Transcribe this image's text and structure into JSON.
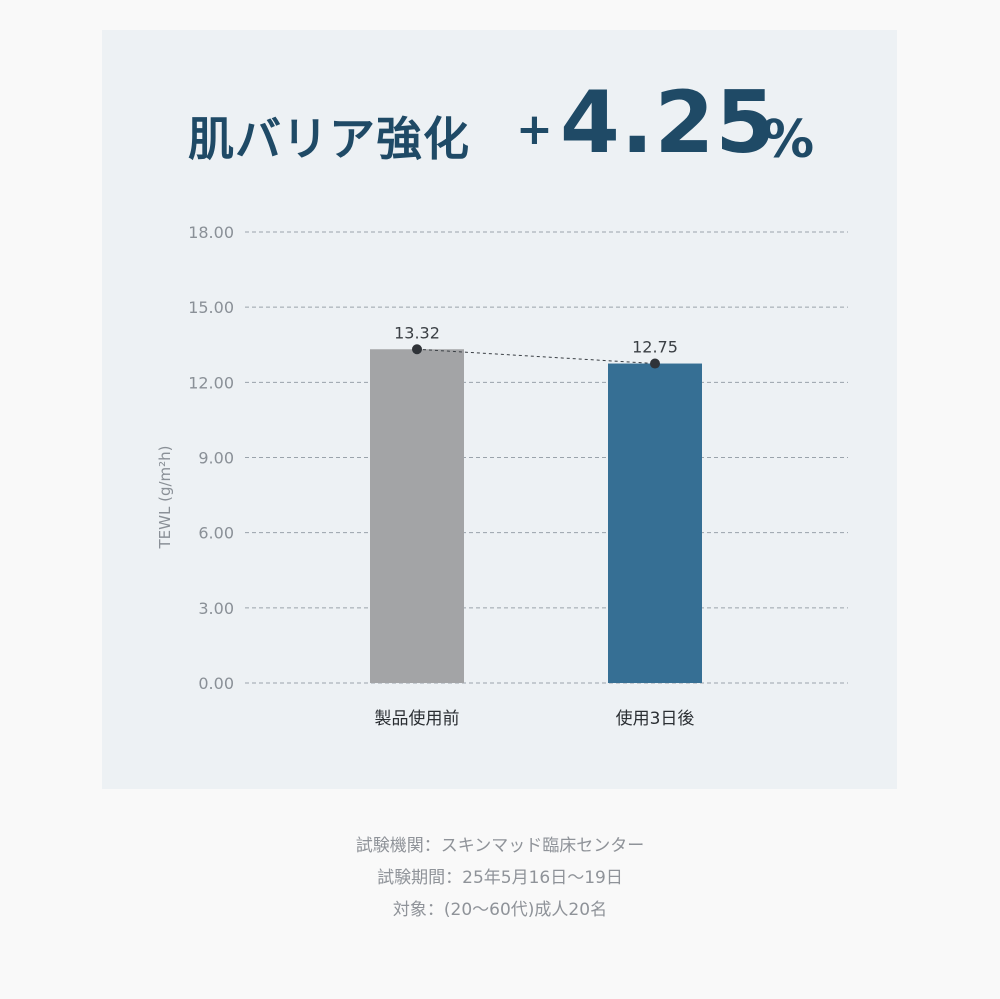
{
  "headline": {
    "text": "肌バリア強化",
    "plus": "+",
    "value": "4.25",
    "unit": "%"
  },
  "colors": {
    "before_bar": "#a3a4a6",
    "after_bar": "#366f94",
    "headline": "#1f4a66",
    "panel_bg": "#edf1f4"
  },
  "chart_data": {
    "type": "bar",
    "categories": [
      "製品使用前",
      "使用3日後"
    ],
    "values": [
      13.32,
      12.75
    ],
    "value_labels": [
      "13.32",
      "12.75"
    ],
    "ylabel": "TEWL (g/m²h)",
    "ylim": [
      0,
      18
    ],
    "yticks": [
      "0.00",
      "3.00",
      "6.00",
      "9.00",
      "12.00",
      "15.00",
      "18.00"
    ],
    "ytick_values": [
      0,
      3,
      6,
      9,
      12,
      15,
      18
    ],
    "grid": true,
    "connector_line": true
  },
  "notes": [
    "試験機関：スキンマッド臨床センター",
    "試験期間：25年5月16日〜19日",
    "対象：(20〜60代)成人20名"
  ]
}
